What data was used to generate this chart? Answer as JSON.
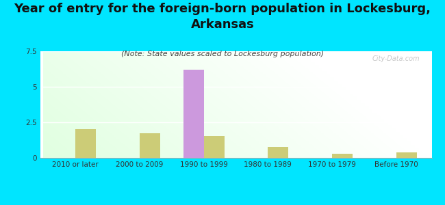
{
  "title": "Year of entry for the foreign-born population in Lockesburg,\nArkansas",
  "subtitle": "(Note: State values scaled to Lockesburg population)",
  "categories": [
    "2010 or later",
    "2000 to 2009",
    "1990 to 1999",
    "1980 to 1989",
    "1970 to 1979",
    "Before 1970"
  ],
  "lockesburg_values": [
    0,
    0,
    6.2,
    0,
    0,
    0
  ],
  "arkansas_values": [
    2.0,
    1.75,
    1.55,
    0.75,
    0.28,
    0.38
  ],
  "lockesburg_color": "#cc99dd",
  "arkansas_color": "#cccc77",
  "background_color": "#00e5ff",
  "ylim": [
    0,
    7.5
  ],
  "yticks": [
    0,
    2.5,
    5,
    7.5
  ],
  "ytick_labels": [
    "0",
    "2.5",
    "5",
    "7.5"
  ],
  "bar_width": 0.32,
  "title_fontsize": 13,
  "subtitle_fontsize": 8,
  "tick_fontsize": 7.5,
  "legend_fontsize": 9,
  "watermark": "City-Data.com"
}
